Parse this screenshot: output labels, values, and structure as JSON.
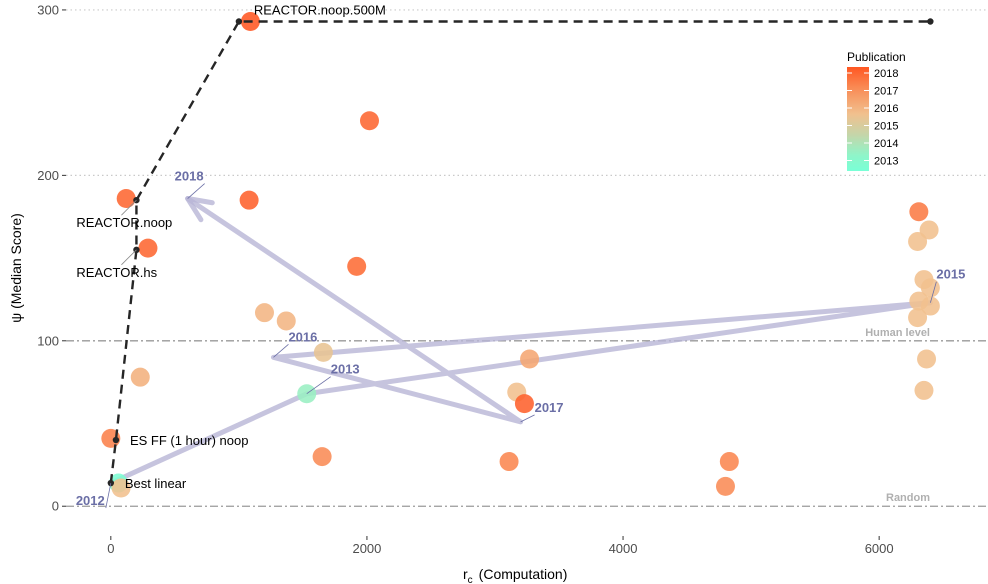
{
  "chart_data": {
    "type": "scatter",
    "xlabel_main": "r",
    "xlabel_sub": "c",
    "xlabel_rest": "(Computation)",
    "ylabel": "ψ  (Median  Score)",
    "xlim": [
      -350,
      6850
    ],
    "ylim": [
      -18,
      306
    ],
    "x_ticks": [
      0,
      2000,
      4000,
      6000
    ],
    "x_tick_labels": [
      "0",
      "2000",
      "4000",
      "6000"
    ],
    "y_ticks": [
      0,
      100,
      200,
      300
    ],
    "y_tick_labels": [
      "0",
      "100",
      "200",
      "300"
    ],
    "grid": "horizontal dotted",
    "points": [
      {
        "x": 1090,
        "y": 293,
        "year": 2018
      },
      {
        "x": 2020,
        "y": 233,
        "year": 2017.7
      },
      {
        "x": 120,
        "y": 186,
        "year": 2017.7
      },
      {
        "x": 1080,
        "y": 185,
        "year": 2017.8
      },
      {
        "x": 290,
        "y": 156,
        "year": 2017.7
      },
      {
        "x": 1920,
        "y": 145,
        "year": 2017.6
      },
      {
        "x": 1200,
        "y": 117,
        "year": 2016.2
      },
      {
        "x": 1370,
        "y": 112,
        "year": 2016.2
      },
      {
        "x": 1660,
        "y": 93,
        "year": 2015.8
      },
      {
        "x": 230,
        "y": 78,
        "year": 2016.3
      },
      {
        "x": 1530,
        "y": 68,
        "year": 2014.2
      },
      {
        "x": 0,
        "y": 41,
        "year": 2017.2
      },
      {
        "x": 1650,
        "y": 30,
        "year": 2017.0
      },
      {
        "x": 60,
        "y": 14,
        "year": 2013.2
      },
      {
        "x": 80,
        "y": 11,
        "year": 2016.0
      },
      {
        "x": 3270,
        "y": 89,
        "year": 2016.5
      },
      {
        "x": 3170,
        "y": 69,
        "year": 2016.0
      },
      {
        "x": 3230,
        "y": 62,
        "year": 2017.8
      },
      {
        "x": 3110,
        "y": 27,
        "year": 2017.1
      },
      {
        "x": 4830,
        "y": 27,
        "year": 2017.1
      },
      {
        "x": 4800,
        "y": 12,
        "year": 2017.0
      },
      {
        "x": 6310,
        "y": 178,
        "year": 2017.3
      },
      {
        "x": 6390,
        "y": 167,
        "year": 2016.0
      },
      {
        "x": 6300,
        "y": 160,
        "year": 2016.0
      },
      {
        "x": 6350,
        "y": 137,
        "year": 2016.0
      },
      {
        "x": 6400,
        "y": 132,
        "year": 2016.0
      },
      {
        "x": 6310,
        "y": 124,
        "year": 2016.0
      },
      {
        "x": 6400,
        "y": 121,
        "year": 2016.0
      },
      {
        "x": 6300,
        "y": 114,
        "year": 2016.0
      },
      {
        "x": 6370,
        "y": 89,
        "year": 2016.0
      },
      {
        "x": 6350,
        "y": 70,
        "year": 2016.0
      }
    ],
    "frontier": [
      {
        "x": 0,
        "y": 14
      },
      {
        "x": 40,
        "y": 40
      },
      {
        "x": 200,
        "y": 155
      },
      {
        "x": 200,
        "y": 185
      },
      {
        "x": 1000,
        "y": 293
      },
      {
        "x": 6400,
        "y": 293
      }
    ],
    "frontier_labels": [
      {
        "text": "REACTOR.noop.500M",
        "x": 1000,
        "y": 293,
        "dx": 15,
        "dy": -7
      },
      {
        "text": "REACTOR.noop",
        "x": 200,
        "y": 185,
        "dx": -60,
        "dy": 27
      },
      {
        "text": "REACTOR.hs",
        "x": 200,
        "y": 155,
        "dx": -60,
        "dy": 27
      },
      {
        "text": "ES FF (1 hour) noop",
        "x": 40,
        "y": 40,
        "dx": 14,
        "dy": 5
      },
      {
        "text": "Best linear",
        "x": 0,
        "y": 14,
        "dx": 14,
        "dy": 5
      }
    ],
    "trajectory": [
      {
        "year": "2012",
        "x": 0,
        "y": 14
      },
      {
        "year": "2013",
        "x": 1530,
        "y": 68
      },
      {
        "year": "2015",
        "x": 6400,
        "y": 123
      },
      {
        "year": "2016",
        "x": 1270,
        "y": 90
      },
      {
        "year": "2017",
        "x": 3200,
        "y": 51
      },
      {
        "year": "2018",
        "x": 600,
        "y": 186
      }
    ],
    "trajectory_labels": [
      {
        "text": "2012",
        "x": 0,
        "y": 14,
        "dx": -35,
        "dy": 22
      },
      {
        "text": "2013",
        "x": 1530,
        "y": 68,
        "dx": 24,
        "dy": -20
      },
      {
        "text": "2015",
        "x": 6400,
        "y": 123,
        "dx": 6,
        "dy": -24
      },
      {
        "text": "2016",
        "x": 1270,
        "y": 90,
        "dx": 15,
        "dy": -16
      },
      {
        "text": "2017",
        "x": 3200,
        "y": 51,
        "dx": 14,
        "dy": -10
      },
      {
        "text": "2018",
        "x": 600,
        "y": 186,
        "dx": -13,
        "dy": -18
      }
    ],
    "reference_lines": [
      {
        "label": "Human level",
        "y": 100
      },
      {
        "label": "Random",
        "y": 0
      }
    ],
    "legend": {
      "title": "Publication",
      "placement": "top-right",
      "entries": [
        "2018",
        "2017",
        "2016",
        "2015",
        "2014",
        "2013"
      ],
      "gradient": [
        "#ff5722",
        "#f98b55",
        "#f1c08e",
        "#c5d5a9",
        "#8ff5c9",
        "#79ffd6"
      ]
    },
    "colors": {
      "frontier": "#262626",
      "trajectory": "#b8b5d6",
      "year_label": "#6b6fa6",
      "reference": "#9a9a9a",
      "grid": "#c9c9c9"
    }
  }
}
